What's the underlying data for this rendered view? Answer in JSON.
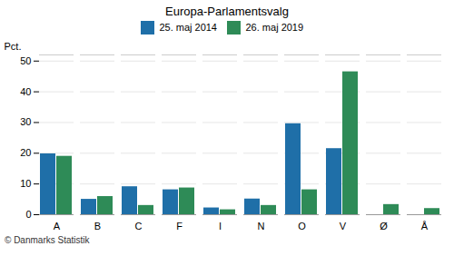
{
  "chart_data": {
    "type": "bar",
    "title": "Europa-Parlamentsvalg",
    "categories": [
      "A",
      "B",
      "C",
      "F",
      "I",
      "N",
      "O",
      "V",
      "Ø",
      "Å"
    ],
    "series": [
      {
        "name": "25. maj 2014",
        "color": "#1f6fa8",
        "values": [
          19.8,
          5.0,
          9.1,
          8.1,
          2.2,
          5.1,
          29.6,
          21.5,
          0.0,
          0.0
        ]
      },
      {
        "name": "26. maj 2019",
        "color": "#2e8b57",
        "values": [
          19.0,
          5.9,
          3.0,
          8.7,
          1.6,
          3.0,
          8.1,
          46.5,
          3.3,
          2.0
        ]
      }
    ],
    "ylabel": "Pct.",
    "ylim": [
      0,
      52
    ],
    "yticks": [
      0,
      10,
      20,
      30,
      40,
      50
    ],
    "grid": true,
    "legend": "top",
    "caption": "© Danmarks Statistik"
  }
}
